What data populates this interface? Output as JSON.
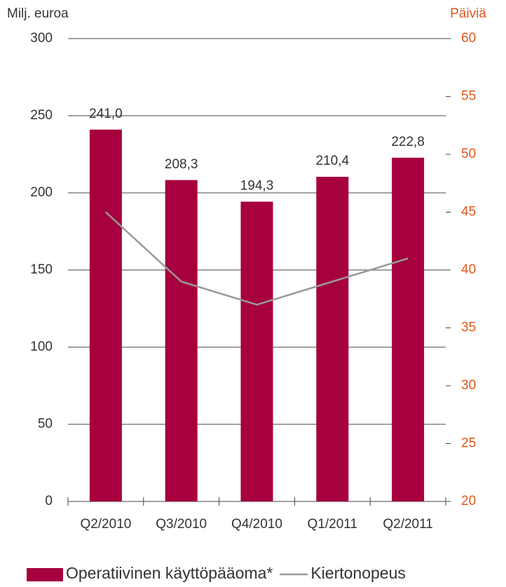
{
  "chart_data": {
    "type": "bar",
    "y_axis_label": "Milj. euroa",
    "y2_axis_label": "Päiviä",
    "categories": [
      "Q2/2010",
      "Q3/2010",
      "Q4/2010",
      "Q1/2011",
      "Q2/2011"
    ],
    "series": [
      {
        "name": "Operatiivinen käyttöpääoma*",
        "type": "bar",
        "color": "#a6003f",
        "values": [
          241.0,
          208.3,
          194.3,
          210.4,
          222.8
        ],
        "value_labels": [
          "241,0",
          "208,3",
          "194,3",
          "210,4",
          "222,8"
        ]
      },
      {
        "name": "Kiertonopeus",
        "type": "line",
        "axis": "y2",
        "color": "#999999",
        "values": [
          45,
          39,
          37,
          39,
          41
        ]
      }
    ],
    "ylim": [
      0,
      300
    ],
    "yticks": [
      0,
      50,
      100,
      150,
      200,
      250,
      300
    ],
    "y2lim": [
      20,
      60
    ],
    "y2ticks": [
      20,
      25,
      30,
      35,
      40,
      45,
      50,
      55,
      60
    ],
    "grid": true
  }
}
